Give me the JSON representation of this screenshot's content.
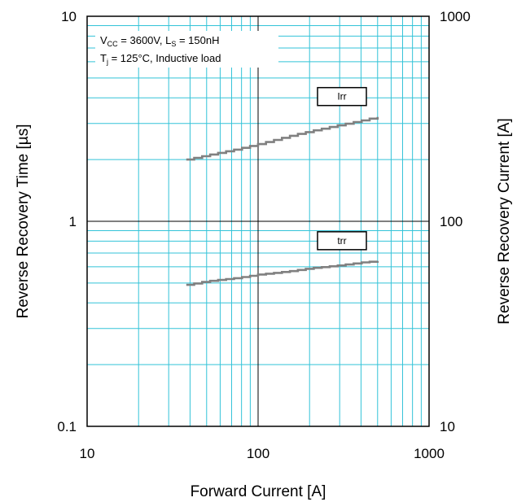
{
  "chart_data": {
    "type": "line",
    "xlabel": "Forward Current [A]",
    "ylabel": "Reverse Recovery Time [µs]",
    "y2label": "Reverse Recovery Current [A]",
    "xscale": "log",
    "yscale": "log",
    "y2scale": "log",
    "xlim": [
      10,
      1000
    ],
    "ylim": [
      0.1,
      10
    ],
    "y2lim": [
      10,
      1000
    ],
    "grid": true,
    "x_tick_labels": [
      "10",
      "100",
      "1000"
    ],
    "y_tick_labels": [
      "0.1",
      "1",
      "10"
    ],
    "y2_tick_labels": [
      "10",
      "100",
      "1000"
    ],
    "conditions": {
      "line1": {
        "v": "V",
        "v_sub": "CC",
        "v_rest": " = 3600V, L",
        "l_sub": "S",
        "l_rest": " = 150nH"
      },
      "line2": {
        "t": "T",
        "t_sub": "j",
        "t_rest": " = 125°C, Inductive load"
      }
    },
    "series": [
      {
        "name": "Irr",
        "axis": "right",
        "x": [
          38,
          50,
          75,
          100,
          150,
          200,
          300,
          400,
          500
        ],
        "y": [
          200,
          210,
          225,
          238,
          260,
          275,
          295,
          310,
          323
        ]
      },
      {
        "name": "trr",
        "axis": "left",
        "x": [
          38,
          50,
          75,
          100,
          150,
          200,
          300,
          400,
          500
        ],
        "y": [
          0.49,
          0.51,
          0.53,
          0.55,
          0.57,
          0.59,
          0.61,
          0.63,
          0.64
        ]
      }
    ]
  },
  "colors": {
    "grid": "#33c3d8",
    "major": "#000000",
    "curve": "#808080"
  }
}
